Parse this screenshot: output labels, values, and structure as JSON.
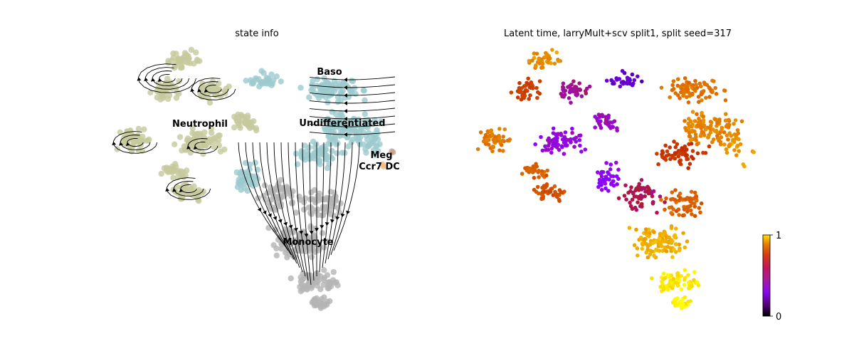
{
  "chart_data": [
    {
      "type": "scatter",
      "subtype": "umap-embedding-with-velocity-streamlines",
      "title": "state info",
      "legend": "on-data",
      "grid": false,
      "axes_visible": false,
      "clusters": [
        {
          "name": "Neutrophil",
          "color": "#c5c99c"
        },
        {
          "name": "Baso",
          "color": "#9ccbce"
        },
        {
          "name": "Undifferentiated",
          "color": "#9ccbce"
        },
        {
          "name": "Meg",
          "color": "#c8a28c"
        },
        {
          "name": "Ccr7 DC",
          "color": "#f0b87c"
        },
        {
          "name": "Monocyte",
          "color": "#b4b4b4"
        }
      ],
      "streamline_color": "#000000"
    },
    {
      "type": "scatter",
      "subtype": "umap-embedding-colored-by-value",
      "title": "Latent time, larryMult+scv split1, split seed=317",
      "colormap": "gnuplot",
      "colorbar": {
        "min": 0,
        "max": 1,
        "ticks": [
          "0",
          "1"
        ],
        "placement": "right"
      },
      "grid": false,
      "axes_visible": false
    }
  ]
}
